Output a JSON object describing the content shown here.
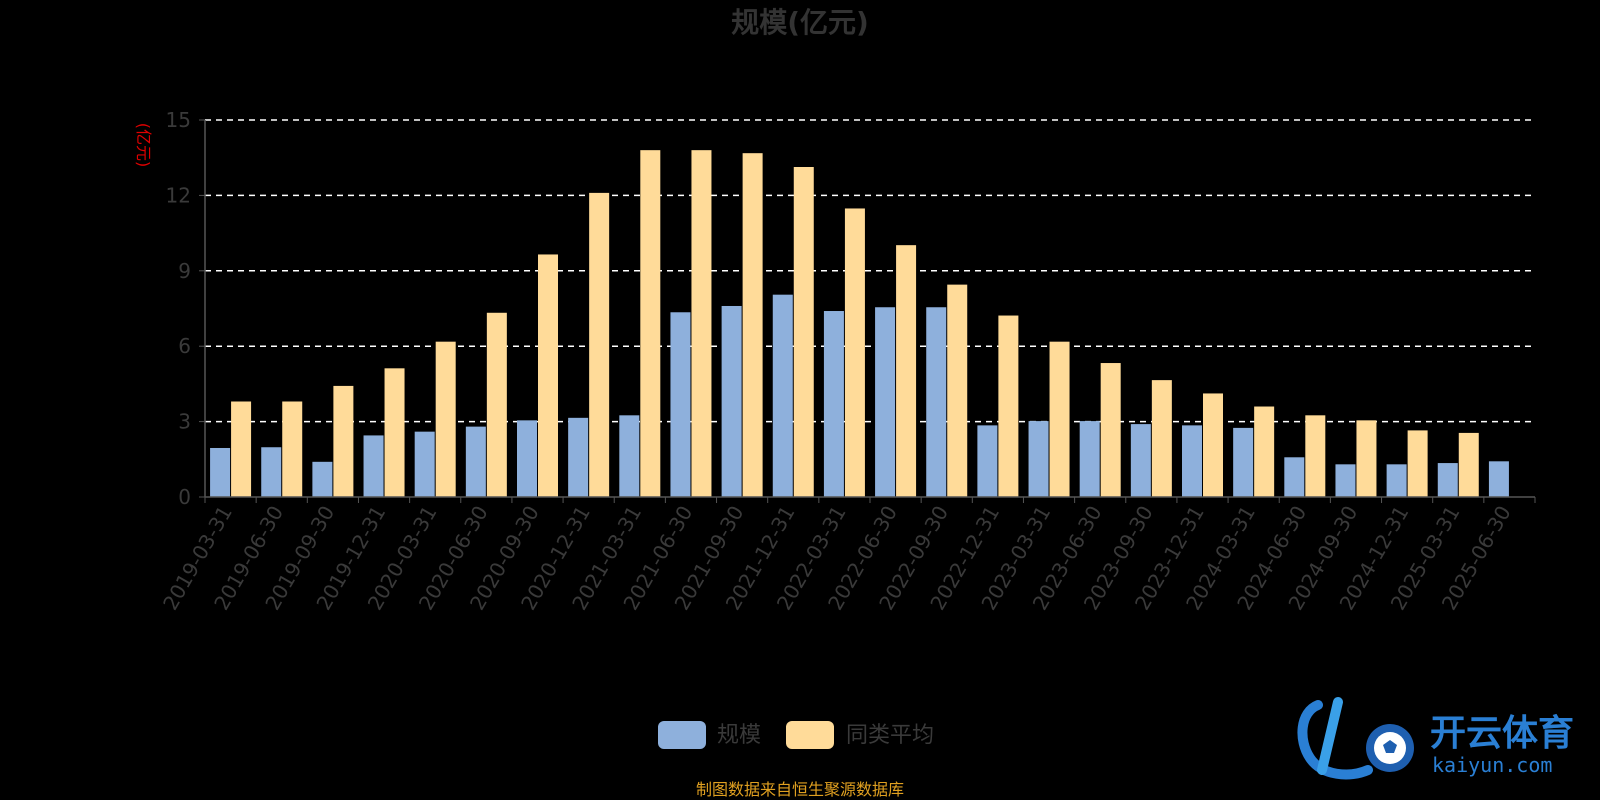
{
  "colors": {
    "series1": "#8eb0dc",
    "series2": "#ffdb99",
    "grid": "#ffffff",
    "axis": "#555555",
    "ylabel": "#e00000",
    "source": "#e0a020",
    "logo": "#2a7fd4"
  },
  "chart_data": {
    "type": "bar",
    "title": "规模(亿元)",
    "ylabel": "(亿元)",
    "ylim": [
      0,
      15
    ],
    "yticks": [
      0,
      3,
      6,
      9,
      12,
      15
    ],
    "grid": true,
    "legend_position": "bottom",
    "categories": [
      "2019-03-31",
      "2019-06-30",
      "2019-09-30",
      "2019-12-31",
      "2020-03-31",
      "2020-06-30",
      "2020-09-30",
      "2020-12-31",
      "2021-03-31",
      "2021-06-30",
      "2021-09-30",
      "2021-12-31",
      "2022-03-31",
      "2022-06-30",
      "2022-09-30",
      "2022-12-31",
      "2023-03-31",
      "2023-06-30",
      "2023-09-30",
      "2023-12-31",
      "2024-03-31",
      "2024-06-30",
      "2024-09-30",
      "2024-12-31",
      "2025-03-31",
      "2025-06-30"
    ],
    "series": [
      {
        "name": "规模",
        "values": [
          1.95,
          1.98,
          1.4,
          2.45,
          2.6,
          2.8,
          3.05,
          3.15,
          3.25,
          7.35,
          7.6,
          8.05,
          7.4,
          7.55,
          7.55,
          2.85,
          3.02,
          3.02,
          2.9,
          2.85,
          2.75,
          1.58,
          1.3,
          1.3,
          1.35,
          1.42
        ]
      },
      {
        "name": "同类平均",
        "values": [
          3.8,
          3.8,
          4.42,
          5.12,
          6.18,
          7.33,
          9.65,
          12.1,
          13.8,
          13.8,
          13.68,
          13.13,
          11.48,
          10.02,
          8.45,
          7.22,
          6.18,
          5.33,
          4.65,
          4.12,
          3.6,
          3.25,
          3.05,
          2.65,
          2.55,
          null
        ]
      }
    ]
  },
  "footer": {
    "source": "制图数据来自恒生聚源数据库"
  },
  "logo": {
    "name": "开云体育",
    "url": "kaiyun.com"
  }
}
